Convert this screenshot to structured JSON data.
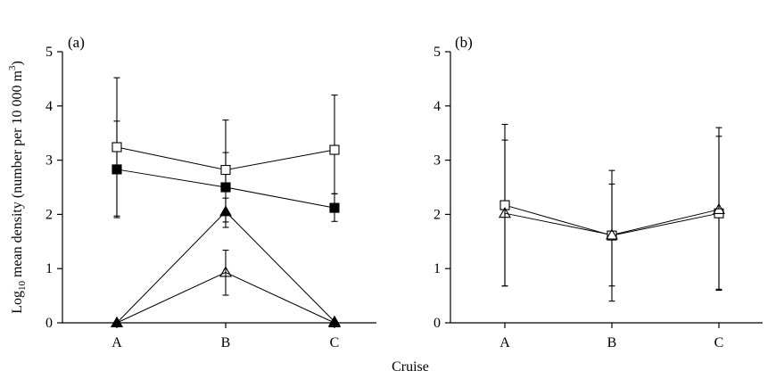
{
  "figure": {
    "ylabel_main": "Log",
    "ylabel_sub": "10",
    "ylabel_rest": " mean density (number per 10 000 m",
    "ylabel_sup": "3",
    "ylabel_close": ")",
    "xlabel": "Cruise"
  },
  "chart_data": [
    {
      "type": "line",
      "panel_label": "(a)",
      "categories": [
        "A",
        "B",
        "C"
      ],
      "ylim": [
        0,
        5
      ],
      "yticks": [
        "0",
        "1",
        "2",
        "3",
        "4",
        "5"
      ],
      "grid": false,
      "series": [
        {
          "marker": "square-open",
          "values": [
            3.24,
            2.82,
            3.19
          ],
          "err_low": [
            1.97,
            2.48,
            2.38
          ],
          "err_high": [
            4.52,
            3.74,
            4.2
          ]
        },
        {
          "marker": "square-filled",
          "values": [
            2.83,
            2.5,
            2.12
          ],
          "err_low": [
            1.94,
            1.86,
            1.87
          ],
          "err_high": [
            3.72,
            3.14,
            2.38
          ]
        },
        {
          "marker": "triangle-filled",
          "values": [
            0.0,
            2.05,
            0.02
          ],
          "err_low": [
            0.0,
            1.76,
            0.0
          ],
          "err_high": [
            0.0,
            2.3,
            0.0
          ]
        },
        {
          "marker": "triangle-open",
          "values": [
            0.0,
            0.93,
            0.0
          ],
          "err_low": [
            0.0,
            0.51,
            0.0
          ],
          "err_high": [
            0.0,
            1.34,
            0.0
          ]
        }
      ]
    },
    {
      "type": "line",
      "panel_label": "(b)",
      "categories": [
        "A",
        "B",
        "C"
      ],
      "ylim": [
        0,
        5
      ],
      "yticks": [
        "0",
        "1",
        "2",
        "3",
        "4",
        "5"
      ],
      "grid": false,
      "series": [
        {
          "marker": "square-open",
          "values": [
            2.17,
            1.61,
            2.02
          ],
          "err_low": [
            0.68,
            0.68,
            0.62
          ],
          "err_high": [
            3.66,
            2.81,
            3.6
          ]
        },
        {
          "marker": "triangle-open",
          "values": [
            2.02,
            1.62,
            2.09
          ],
          "err_low": [
            0.68,
            0.4,
            0.6
          ],
          "err_high": [
            3.37,
            2.56,
            3.44
          ]
        }
      ]
    }
  ]
}
